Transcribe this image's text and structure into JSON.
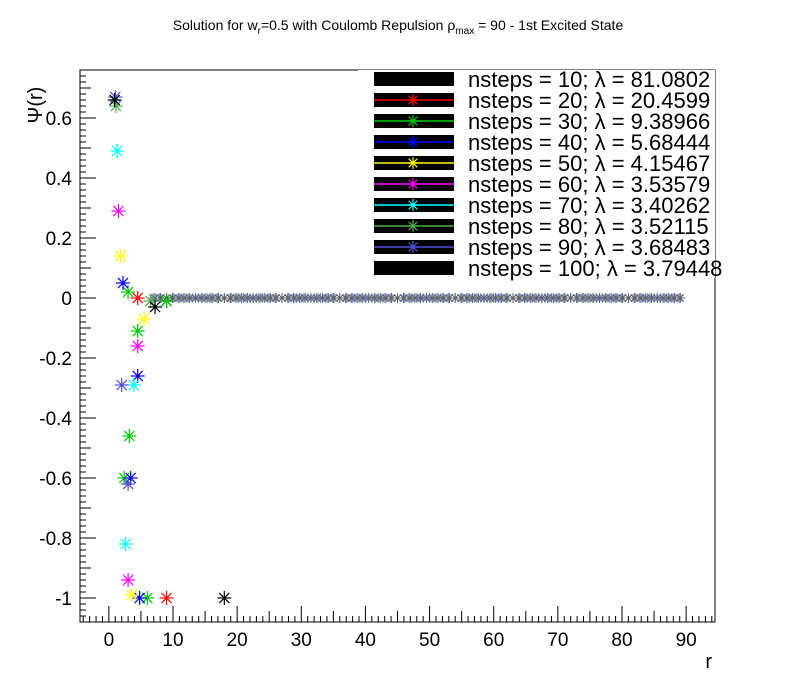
{
  "chart_data": {
    "type": "scatter",
    "title": {
      "prefix": "Solution for w",
      "sub1": "r",
      "mid": "=0.5 with Coulomb Repulsion ρ",
      "sub2": "max",
      "suffix": " = 90 - 1st Excited State"
    },
    "xlabel": "r",
    "ylabel": "Ψ(r)",
    "xlim": [
      -4.5,
      94.5
    ],
    "ylim": [
      -1.08,
      0.76
    ],
    "x_ticks": [
      0,
      10,
      20,
      30,
      40,
      50,
      60,
      70,
      80,
      90
    ],
    "y_ticks": [
      -1,
      -0.8,
      -0.6,
      -0.4,
      -0.2,
      0,
      0.2,
      0.4,
      0.6
    ],
    "y_tick_labels": [
      "-1",
      "-0.8",
      "-0.6",
      "-0.4",
      "-0.2",
      "0",
      "0.2",
      "0.4",
      "0.6"
    ],
    "legend_position": "top-right",
    "series": [
      {
        "name": "nsteps = 10; λ = 81.0802",
        "color": "#000000",
        "x": [
          9,
          18
        ],
        "y": [
          -0.01,
          -1.0
        ]
      },
      {
        "name": "nsteps = 20; λ = 20.4599",
        "color": "#ff0000",
        "x": [
          4.5,
          9
        ],
        "y": [
          0.0,
          -1.0
        ]
      },
      {
        "name": "nsteps = 30; λ = 9.38966",
        "color": "#00cc00",
        "x": [
          3,
          4.5,
          3.2,
          2.4,
          6,
          9
        ],
        "y": [
          0.02,
          -0.11,
          -0.46,
          -0.6,
          -1.0,
          -0.01
        ]
      },
      {
        "name": "nsteps = 40; λ = 5.68444",
        "color": "#0000ff",
        "x": [
          2.2,
          4.5,
          3.4,
          4.8
        ],
        "y": [
          0.05,
          -0.26,
          -0.6,
          -1.0
        ]
      },
      {
        "name": "nsteps = 50; λ = 4.15467",
        "color": "#ffff00",
        "x": [
          1.8,
          5.5,
          3.6
        ],
        "y": [
          0.14,
          -0.07,
          -0.99
        ]
      },
      {
        "name": "nsteps = 60; λ = 3.53579",
        "color": "#ff00ff",
        "x": [
          1.5,
          4.5,
          3.0
        ],
        "y": [
          0.29,
          -0.16,
          -0.94
        ]
      },
      {
        "name": "nsteps = 70; λ = 3.40262",
        "color": "#00ffff",
        "x": [
          1.3,
          3.9,
          2.6
        ],
        "y": [
          0.49,
          -0.29,
          -0.82
        ]
      },
      {
        "name": "nsteps = 80; λ = 3.52115",
        "color": "#4cb04c",
        "x": [
          1.1,
          6.5
        ],
        "y": [
          0.64,
          -0.01
        ]
      },
      {
        "name": "nsteps = 90; λ = 3.68483",
        "color": "#5050d8",
        "x": [
          1.0,
          2.0,
          3.0
        ],
        "y": [
          0.67,
          -0.29,
          -0.62
        ]
      },
      {
        "name": "nsteps = 100; λ = 3.79448",
        "color": "#000000",
        "x": [
          0.9,
          7.2
        ],
        "y": [
          0.66,
          -0.03
        ]
      }
    ],
    "tail_series": [
      {
        "color": "#7cc07c",
        "step": 1.125,
        "start": 6.75
      },
      {
        "color": "#8080ff",
        "step": 1.0,
        "start": 7.0
      },
      {
        "color": "#606060",
        "step": 0.9,
        "start": 7.2
      }
    ]
  }
}
